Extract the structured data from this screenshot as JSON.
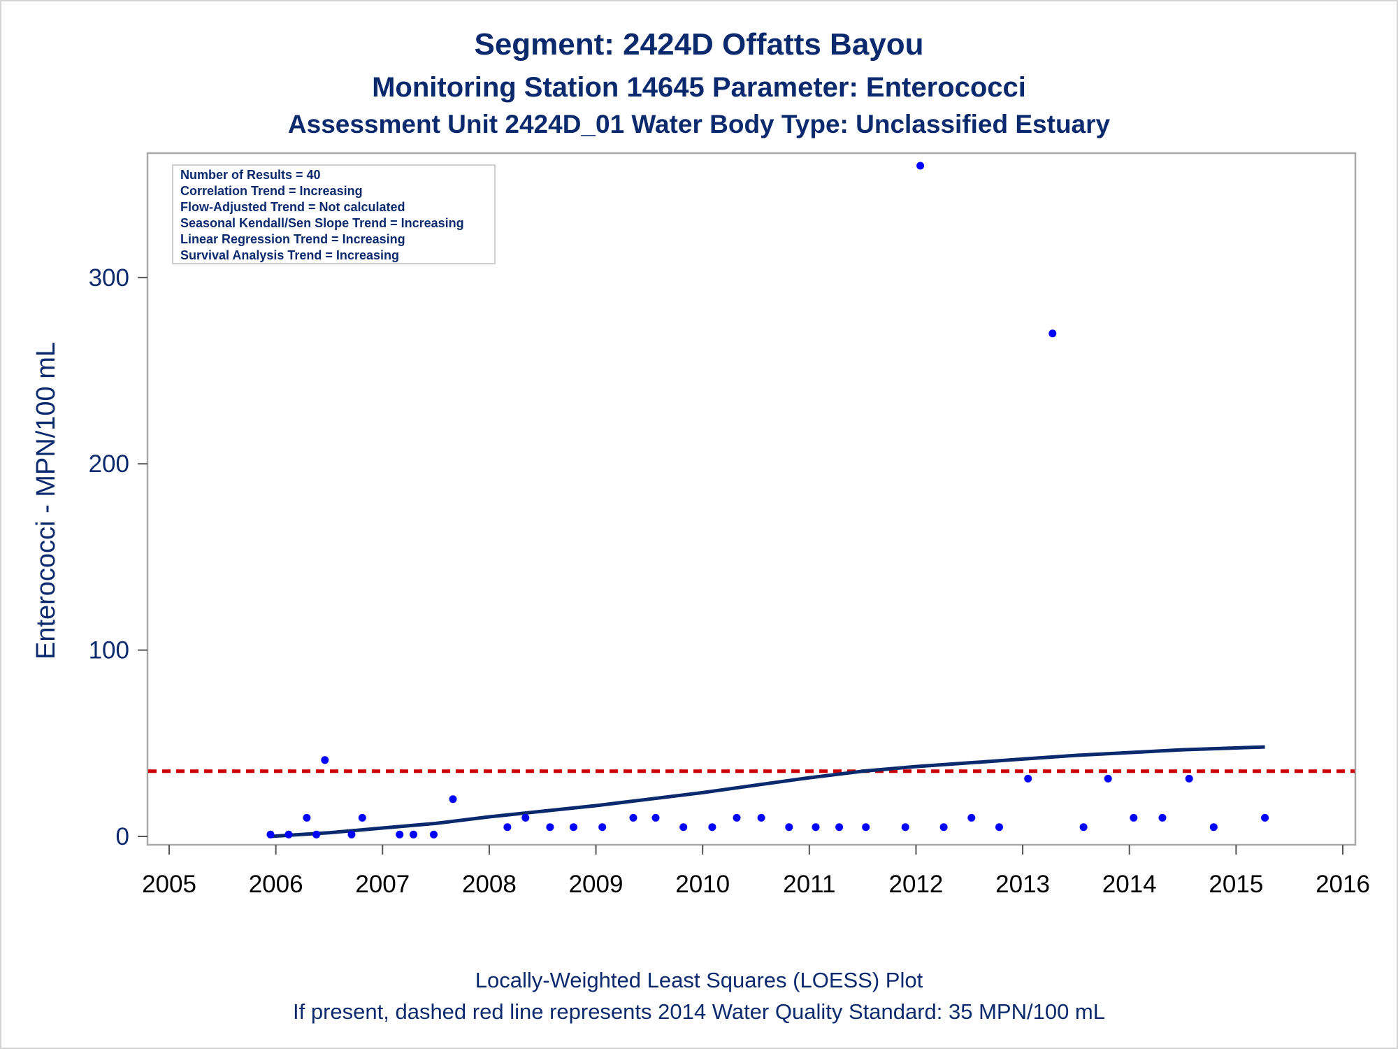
{
  "titles": {
    "line1": "Segment: 2424D  Offatts Bayou",
    "line2": "Monitoring Station 14645 Parameter: Enterococci",
    "line3": "Assessment Unit 2424D_01   Water Body Type: Unclassified Estuary"
  },
  "footnotes": {
    "line1": "Locally-Weighted Least Squares (LOESS) Plot",
    "line2": "If present, dashed red line represents 2014 Water Quality Standard: 35 MPN/100 mL"
  },
  "stats": [
    "Number of Results = 40",
    "Correlation Trend = Increasing",
    "Flow-Adjusted Trend = Not calculated",
    "Seasonal Kendall/Sen Slope Trend = Increasing",
    "Linear Regression Trend = Increasing",
    "Survival Analysis Trend = Increasing"
  ],
  "chart_data": {
    "type": "scatter",
    "ylabel": "Enterococci - MPN/100 mL",
    "xlim": [
      2005,
      2016
    ],
    "ylim": [
      0,
      360
    ],
    "xticks": [
      2005,
      2006,
      2007,
      2008,
      2009,
      2010,
      2011,
      2012,
      2013,
      2014,
      2015,
      2016
    ],
    "yticks": [
      0,
      100,
      200,
      300
    ],
    "colors": {
      "points": "#0000ff",
      "loess": "#0b2a6e",
      "standard": "#cc0000"
    },
    "points": [
      [
        2005.95,
        1
      ],
      [
        2006.12,
        1
      ],
      [
        2006.29,
        10
      ],
      [
        2006.38,
        1
      ],
      [
        2006.46,
        41
      ],
      [
        2006.71,
        1
      ],
      [
        2006.81,
        10
      ],
      [
        2007.16,
        1
      ],
      [
        2007.29,
        1
      ],
      [
        2007.48,
        1
      ],
      [
        2007.66,
        20
      ],
      [
        2008.17,
        5
      ],
      [
        2008.34,
        10
      ],
      [
        2008.57,
        5
      ],
      [
        2008.79,
        5
      ],
      [
        2009.06,
        5
      ],
      [
        2009.35,
        10
      ],
      [
        2009.56,
        10
      ],
      [
        2009.82,
        5
      ],
      [
        2010.09,
        5
      ],
      [
        2010.32,
        10
      ],
      [
        2010.55,
        10
      ],
      [
        2010.81,
        5
      ],
      [
        2011.06,
        5
      ],
      [
        2011.28,
        5
      ],
      [
        2011.53,
        5
      ],
      [
        2011.9,
        5
      ],
      [
        2012.04,
        360
      ],
      [
        2012.26,
        5
      ],
      [
        2012.52,
        10
      ],
      [
        2012.78,
        5
      ],
      [
        2013.05,
        31
      ],
      [
        2013.28,
        270
      ],
      [
        2013.57,
        5
      ],
      [
        2013.8,
        31
      ],
      [
        2014.04,
        10
      ],
      [
        2014.31,
        10
      ],
      [
        2014.56,
        31
      ],
      [
        2014.79,
        5
      ],
      [
        2015.27,
        10
      ]
    ],
    "loess": [
      [
        2005.95,
        0
      ],
      [
        2006.5,
        2
      ],
      [
        2007.0,
        4.5
      ],
      [
        2007.5,
        7
      ],
      [
        2008.0,
        10.5
      ],
      [
        2008.5,
        13.5
      ],
      [
        2009.0,
        16.5
      ],
      [
        2009.5,
        20
      ],
      [
        2010.0,
        23.5
      ],
      [
        2010.5,
        27.5
      ],
      [
        2011.0,
        31.5
      ],
      [
        2011.5,
        35
      ],
      [
        2012.0,
        37.5
      ],
      [
        2012.5,
        39.5
      ],
      [
        2013.0,
        41.5
      ],
      [
        2013.5,
        43.5
      ],
      [
        2014.0,
        45
      ],
      [
        2014.5,
        46.5
      ],
      [
        2015.0,
        47.5
      ],
      [
        2015.27,
        48
      ]
    ],
    "standard": {
      "y": 35,
      "label": "2014 Water Quality Standard: 35 MPN/100 mL"
    }
  }
}
